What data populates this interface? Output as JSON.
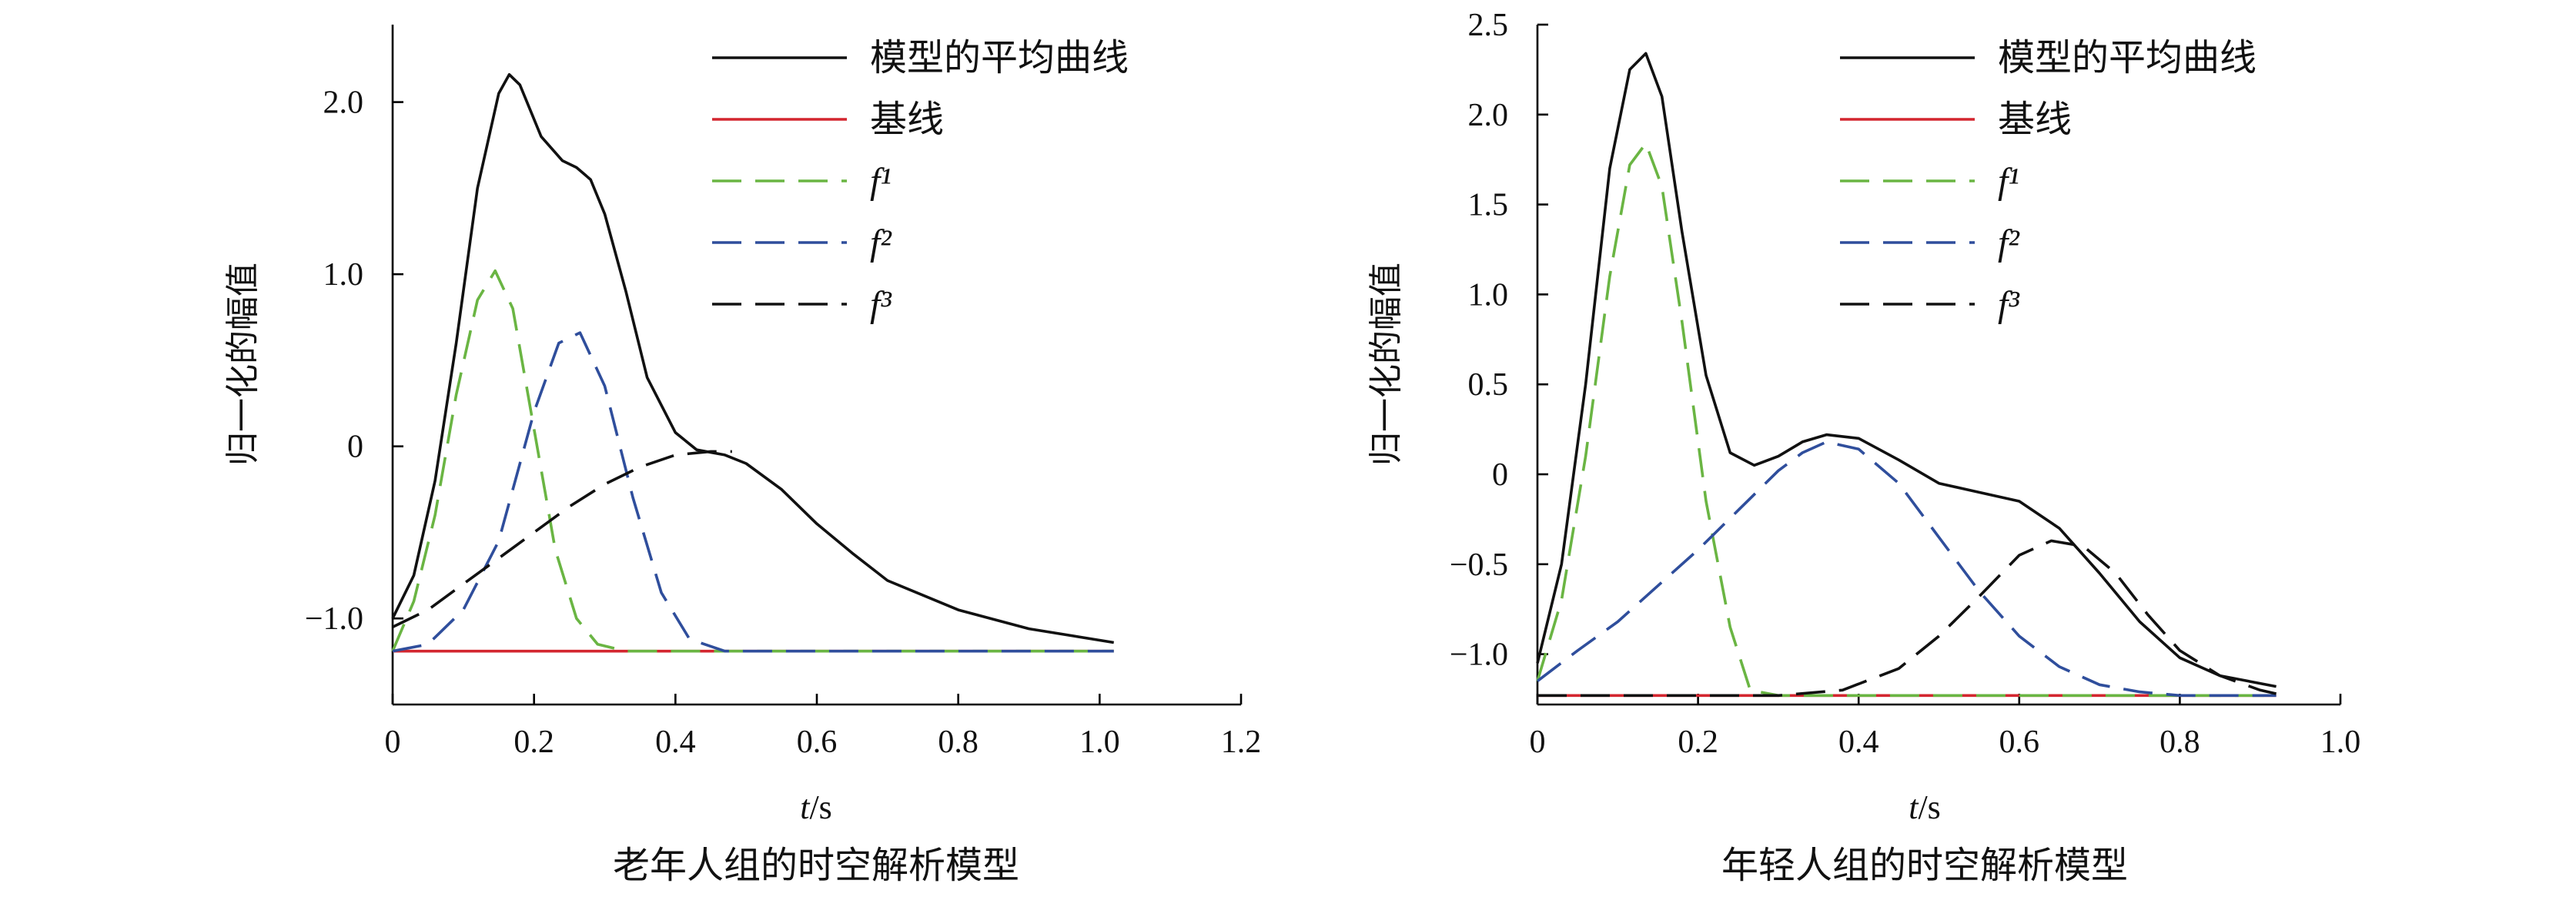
{
  "chart_data": [
    {
      "type": "line",
      "caption": "老年人组的时空解析模型",
      "xlabel_var": "t",
      "xlabel_unit": "/s",
      "ylabel": "归一化的幅值",
      "xlim": [
        0,
        1.2
      ],
      "ylim": [
        -1.5,
        2.45
      ],
      "xticks": [
        0,
        0.2,
        0.4,
        0.6,
        0.8,
        1.0,
        1.2
      ],
      "xtick_labels": [
        "0",
        "0.2",
        "0.4",
        "0.6",
        "0.8",
        "1.0",
        "1.2"
      ],
      "yticks": [
        -1.0,
        0,
        1.0,
        2.0
      ],
      "ytick_labels": [
        "−1.0",
        "0",
        "1.0",
        "2.0"
      ],
      "legend_position": "top-right",
      "series": [
        {
          "name": "模型的平均曲线",
          "color": "#111111",
          "dash": "solid",
          "x": [
            0,
            0.03,
            0.06,
            0.09,
            0.12,
            0.15,
            0.165,
            0.18,
            0.21,
            0.24,
            0.26,
            0.28,
            0.3,
            0.33,
            0.36,
            0.4,
            0.43,
            0.47,
            0.5,
            0.55,
            0.6,
            0.65,
            0.7,
            0.8,
            0.9,
            1.02
          ],
          "y": [
            -1.0,
            -0.75,
            -0.2,
            0.6,
            1.5,
            2.05,
            2.16,
            2.1,
            1.8,
            1.66,
            1.62,
            1.55,
            1.35,
            0.9,
            0.4,
            0.08,
            -0.02,
            -0.05,
            -0.1,
            -0.25,
            -0.45,
            -0.62,
            -0.78,
            -0.95,
            -1.06,
            -1.14
          ]
        },
        {
          "name": "基线",
          "color": "#d3262f",
          "dash": "solid",
          "x": [
            0,
            1.02
          ],
          "y": [
            -1.19,
            -1.19
          ]
        },
        {
          "name": "f¹",
          "color": "#6ab543",
          "dash": "dashed",
          "x": [
            0,
            0.03,
            0.06,
            0.09,
            0.12,
            0.145,
            0.17,
            0.2,
            0.23,
            0.26,
            0.29,
            0.33,
            1.02
          ],
          "y": [
            -1.19,
            -0.9,
            -0.4,
            0.3,
            0.85,
            1.02,
            0.8,
            0.1,
            -0.6,
            -1.0,
            -1.15,
            -1.19,
            -1.19
          ]
        },
        {
          "name": "f²",
          "color": "#2f4e9c",
          "dash": "dashed",
          "x": [
            0,
            0.05,
            0.1,
            0.15,
            0.2,
            0.235,
            0.265,
            0.3,
            0.34,
            0.38,
            0.42,
            0.47,
            1.02
          ],
          "y": [
            -1.19,
            -1.15,
            -0.95,
            -0.55,
            0.2,
            0.6,
            0.66,
            0.35,
            -0.3,
            -0.85,
            -1.12,
            -1.19,
            -1.19
          ]
        },
        {
          "name": "f³",
          "color": "#111111",
          "dash": "dashed",
          "x": [
            0,
            0.05,
            0.1,
            0.15,
            0.2,
            0.25,
            0.3,
            0.35,
            0.4,
            0.45,
            0.48
          ],
          "y": [
            -1.05,
            -0.95,
            -0.8,
            -0.65,
            -0.5,
            -0.35,
            -0.22,
            -0.12,
            -0.05,
            -0.03,
            -0.03
          ]
        }
      ]
    },
    {
      "type": "line",
      "caption": "年轻人组的时空解析模型",
      "xlabel_var": "t",
      "xlabel_unit": "/s",
      "ylabel": "归一化的幅值",
      "xlim": [
        0,
        1.0
      ],
      "ylim": [
        -1.28,
        2.5
      ],
      "xticks": [
        0,
        0.2,
        0.4,
        0.6,
        0.8,
        1.0
      ],
      "xtick_labels": [
        "0",
        "0.2",
        "0.4",
        "0.6",
        "0.8",
        "1.0"
      ],
      "yticks": [
        -1.0,
        -0.5,
        0,
        0.5,
        1.0,
        1.5,
        2.0,
        2.5
      ],
      "ytick_labels": [
        "−1.0",
        "−0.5",
        "0",
        "0.5",
        "1.0",
        "1.5",
        "2.0",
        "2.5"
      ],
      "legend_position": "top-right",
      "series": [
        {
          "name": "模型的平均曲线",
          "color": "#111111",
          "dash": "solid",
          "x": [
            0,
            0.03,
            0.06,
            0.09,
            0.115,
            0.135,
            0.155,
            0.18,
            0.21,
            0.24,
            0.27,
            0.3,
            0.33,
            0.36,
            0.4,
            0.45,
            0.5,
            0.55,
            0.6,
            0.65,
            0.7,
            0.75,
            0.8,
            0.85,
            0.92
          ],
          "y": [
            -1.05,
            -0.5,
            0.5,
            1.7,
            2.25,
            2.34,
            2.1,
            1.35,
            0.55,
            0.12,
            0.05,
            0.1,
            0.18,
            0.22,
            0.2,
            0.08,
            -0.05,
            -0.1,
            -0.15,
            -0.3,
            -0.55,
            -0.82,
            -1.02,
            -1.12,
            -1.18
          ]
        },
        {
          "name": "基线",
          "color": "#d3262f",
          "dash": "solid",
          "x": [
            0,
            0.92
          ],
          "y": [
            -1.23,
            -1.23
          ]
        },
        {
          "name": "f¹",
          "color": "#6ab543",
          "dash": "dashed",
          "x": [
            0,
            0.03,
            0.06,
            0.09,
            0.115,
            0.135,
            0.155,
            0.18,
            0.21,
            0.24,
            0.265,
            0.3,
            0.92
          ],
          "y": [
            -1.15,
            -0.7,
            0.1,
            1.1,
            1.72,
            1.84,
            1.6,
            0.85,
            -0.15,
            -0.85,
            -1.2,
            -1.23,
            -1.23
          ]
        },
        {
          "name": "f²",
          "color": "#2f4e9c",
          "dash": "dashed",
          "x": [
            0,
            0.05,
            0.1,
            0.15,
            0.2,
            0.25,
            0.3,
            0.33,
            0.36,
            0.4,
            0.45,
            0.5,
            0.55,
            0.6,
            0.65,
            0.7,
            0.75,
            0.8,
            0.92
          ],
          "y": [
            -1.15,
            -0.98,
            -0.82,
            -0.62,
            -0.42,
            -0.2,
            0.02,
            0.12,
            0.18,
            0.14,
            -0.05,
            -0.35,
            -0.65,
            -0.9,
            -1.07,
            -1.17,
            -1.21,
            -1.23,
            -1.23
          ]
        },
        {
          "name": "f³",
          "color": "#111111",
          "dash": "dashed",
          "x": [
            0,
            0.3,
            0.38,
            0.45,
            0.5,
            0.55,
            0.6,
            0.64,
            0.68,
            0.72,
            0.76,
            0.8,
            0.85,
            0.9,
            0.92
          ],
          "y": [
            -1.23,
            -1.23,
            -1.2,
            -1.08,
            -0.9,
            -0.68,
            -0.45,
            -0.37,
            -0.4,
            -0.55,
            -0.78,
            -0.98,
            -1.12,
            -1.2,
            -1.22
          ]
        }
      ]
    }
  ]
}
